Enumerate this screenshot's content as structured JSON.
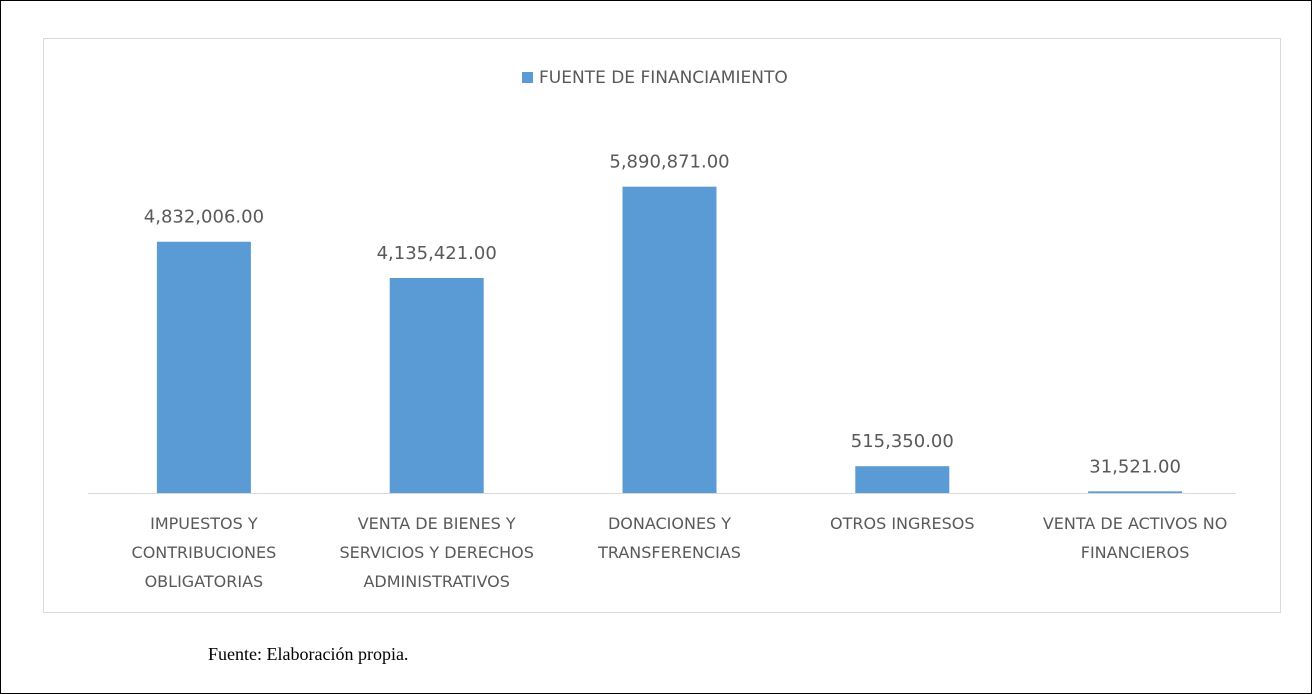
{
  "chart_data": {
    "type": "bar",
    "legend": "FUENTE DE FINANCIAMIENTO",
    "categories": [
      "IMPUESTOS Y CONTRIBUCIONES OBLIGATORIAS",
      "VENTA DE BIENES Y SERVICIOS Y DERECHOS ADMINISTRATIVOS",
      "DONACIONES Y TRANSFERENCIAS",
      "OTROS INGRESOS",
      "VENTA DE ACTIVOS NO FINANCIEROS"
    ],
    "values": [
      4832006,
      4135421,
      5890871,
      515350,
      31521
    ],
    "value_labels": [
      "4,832,006.00",
      "4,135,421.00",
      "5,890,871.00",
      "515,350.00",
      "31,521.00"
    ],
    "color": "#5b9bd5",
    "ylim": [
      0,
      7000000
    ]
  },
  "source": "Fuente: Elaboración propia."
}
